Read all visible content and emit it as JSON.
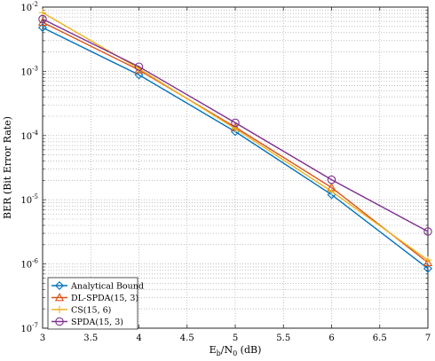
{
  "chart_data": {
    "type": "line",
    "title": "",
    "xlabel": {
      "main": "E",
      "sub1": "b",
      "mid": "/N",
      "sub2": "0",
      "tail": " (dB)"
    },
    "ylabel": "BER (Bit Error Rate)",
    "x": [
      3,
      4,
      5,
      6,
      7
    ],
    "xlim": [
      3,
      7
    ],
    "ylim": [
      1e-07,
      0.01
    ],
    "yscale": "log",
    "grid": true,
    "legend_position": "bottom-left",
    "x_tick_labels": [
      "3",
      "3.5",
      "4",
      "4.5",
      "5",
      "5.5",
      "6",
      "6.5",
      "7"
    ],
    "y_tick_labels": [
      {
        "base": "10",
        "exp": "-7"
      },
      {
        "base": "10",
        "exp": "-6"
      },
      {
        "base": "10",
        "exp": "-5"
      },
      {
        "base": "10",
        "exp": "-4"
      },
      {
        "base": "10",
        "exp": "-3"
      },
      {
        "base": "10",
        "exp": "-2"
      }
    ],
    "series": [
      {
        "name": "Analytical Bound",
        "color": "#0072BD",
        "marker": "diamond",
        "values": [
          0.0048,
          0.00088,
          0.000115,
          1.2e-05,
          8.5e-07
        ]
      },
      {
        "name": "DL-SPDA(15, 3)",
        "color": "#D95319",
        "marker": "triangle",
        "values": [
          0.0058,
          0.00105,
          0.000135,
          1.55e-05,
          1.05e-06
        ]
      },
      {
        "name": "CS(15, 6)",
        "color": "#EDB120",
        "marker": "plus",
        "values": [
          0.0082,
          0.0011,
          0.000128,
          1.35e-05,
          1.15e-06
        ]
      },
      {
        "name": "SPDA(15, 3)",
        "color": "#7E2F8E",
        "marker": "circle",
        "values": [
          0.0065,
          0.00118,
          0.000158,
          2.05e-05,
          3.2e-06
        ]
      }
    ]
  }
}
